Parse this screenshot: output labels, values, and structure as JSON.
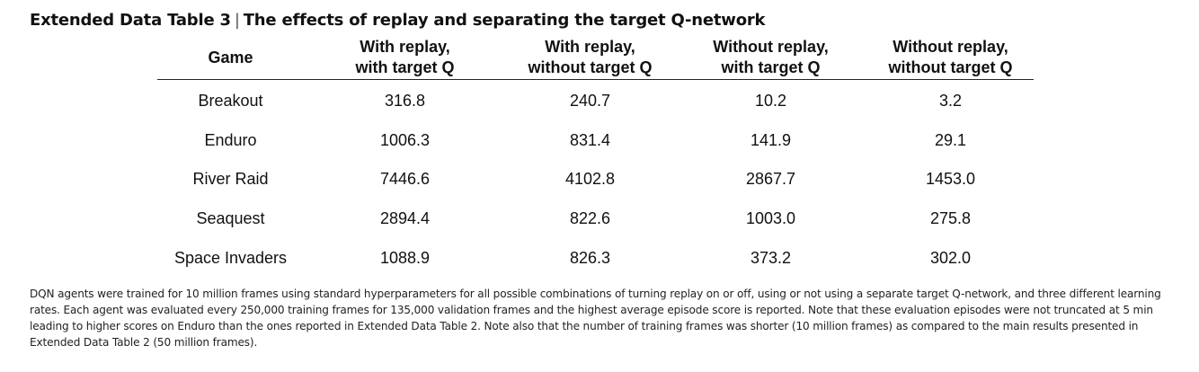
{
  "title": {
    "label": "Extended Data Table 3",
    "separator": "|",
    "text": "The effects of replay and separating the target Q-network"
  },
  "table": {
    "headers": [
      [
        "Game"
      ],
      [
        "With replay,",
        "with target Q"
      ],
      [
        "With replay,",
        "without target Q"
      ],
      [
        "Without replay,",
        "with target Q"
      ],
      [
        "Without replay,",
        "without target Q"
      ]
    ],
    "rows": [
      [
        "Breakout",
        "316.8",
        "240.7",
        "10.2",
        "3.2"
      ],
      [
        "Enduro",
        "1006.3",
        "831.4",
        "141.9",
        "29.1"
      ],
      [
        "River Raid",
        "7446.6",
        "4102.8",
        "2867.7",
        "1453.0"
      ],
      [
        "Seaquest",
        "2894.4",
        "822.6",
        "1003.0",
        "275.8"
      ],
      [
        "Space Invaders",
        "1088.9",
        "826.3",
        "373.2",
        "302.0"
      ]
    ]
  },
  "caption": "DQN agents were trained for 10 million frames using standard hyperparameters for all possible combinations of turning replay on or off, using or not using a separate target Q-network, and three different learning rates. Each agent was evaluated every 250,000 training frames for 135,000 validation frames and the highest average episode score is reported. Note that these evaluation episodes were not truncated at 5 min leading to higher scores on Enduro than the ones reported in Extended Data Table 2. Note also that the number of training frames was shorter (10 million frames) as compared to the main results presented in Extended Data Table 2 (50 million frames)."
}
